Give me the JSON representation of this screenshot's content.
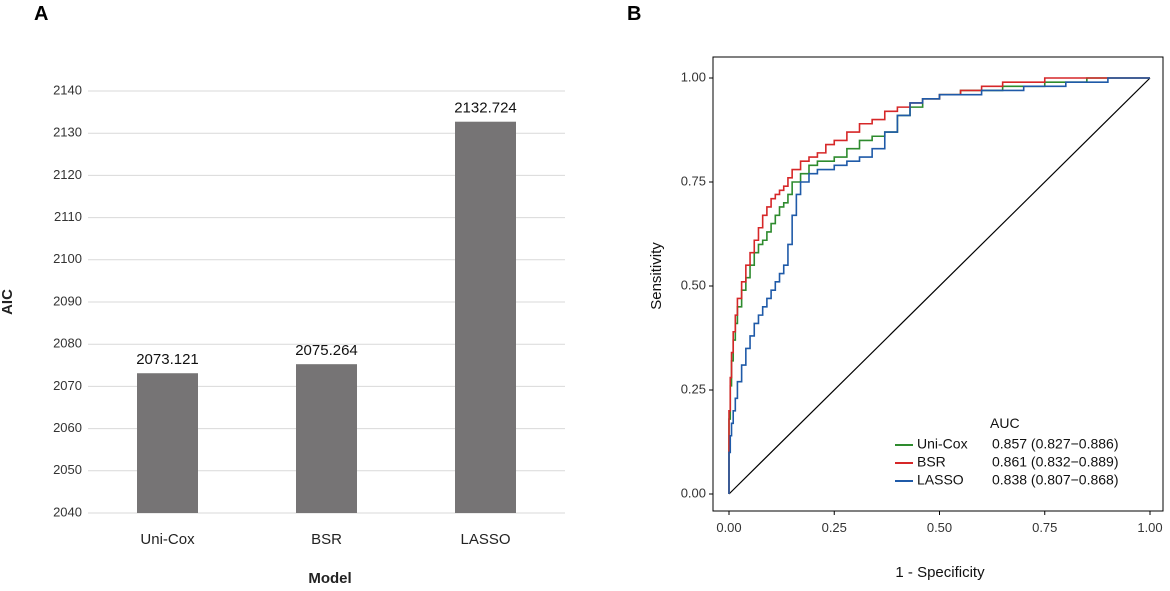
{
  "chart_data": [
    {
      "panel": "A",
      "type": "bar",
      "categories": [
        "Uni-Cox",
        "BSR",
        "LASSO"
      ],
      "values": [
        2073.121,
        2075.264,
        2132.724
      ],
      "value_labels": [
        "2073.121",
        "2075.264",
        "2132.724"
      ],
      "xlabel": "Model",
      "ylabel": "AIC",
      "ylim": [
        2040,
        2140
      ],
      "yticks": [
        "2040",
        "2050",
        "2060",
        "2070",
        "2080",
        "2090",
        "2100",
        "2110",
        "2120",
        "2130",
        "2140"
      ],
      "bar_color": "#767475",
      "grid": true
    },
    {
      "panel": "B",
      "type": "line",
      "xlabel": "1 - Specificity",
      "ylabel": "Sensitivity",
      "xlim": [
        0,
        1
      ],
      "ylim": [
        0,
        1
      ],
      "xticks": [
        "0.00",
        "0.25",
        "0.50",
        "0.75",
        "1.00"
      ],
      "yticks": [
        "0.00",
        "0.25",
        "0.50",
        "0.75",
        "1.00"
      ],
      "legend_title": "AUC",
      "legend_position": "bottom-right",
      "series": [
        {
          "name": "Uni-Cox",
          "auc_text": "0.857 (0.827−0.886)",
          "color": "#2e8b2e",
          "x": [
            0,
            0.003,
            0.006,
            0.01,
            0.015,
            0.02,
            0.03,
            0.04,
            0.05,
            0.06,
            0.07,
            0.08,
            0.09,
            0.1,
            0.11,
            0.12,
            0.13,
            0.14,
            0.15,
            0.17,
            0.19,
            0.21,
            0.23,
            0.25,
            0.28,
            0.31,
            0.34,
            0.37,
            0.4,
            0.43,
            0.46,
            0.5,
            0.55,
            0.6,
            0.65,
            0.7,
            0.75,
            0.8,
            0.85,
            0.9,
            0.95,
            1.0
          ],
          "y": [
            0,
            0.18,
            0.26,
            0.32,
            0.37,
            0.41,
            0.45,
            0.49,
            0.52,
            0.55,
            0.58,
            0.6,
            0.61,
            0.63,
            0.65,
            0.67,
            0.69,
            0.7,
            0.72,
            0.75,
            0.77,
            0.79,
            0.8,
            0.8,
            0.81,
            0.83,
            0.85,
            0.86,
            0.87,
            0.91,
            0.93,
            0.95,
            0.96,
            0.97,
            0.97,
            0.98,
            0.98,
            0.99,
            0.99,
            1.0,
            1.0,
            1.0
          ]
        },
        {
          "name": "BSR",
          "auc_text": "0.861 (0.832−0.889)",
          "color": "#d62728",
          "x": [
            0,
            0.003,
            0.006,
            0.01,
            0.015,
            0.02,
            0.03,
            0.04,
            0.05,
            0.06,
            0.07,
            0.08,
            0.09,
            0.1,
            0.11,
            0.12,
            0.13,
            0.14,
            0.15,
            0.17,
            0.19,
            0.21,
            0.23,
            0.25,
            0.28,
            0.31,
            0.34,
            0.37,
            0.4,
            0.43,
            0.46,
            0.5,
            0.55,
            0.6,
            0.65,
            0.7,
            0.75,
            0.8,
            0.85,
            0.9,
            0.95,
            1.0
          ],
          "y": [
            0,
            0.2,
            0.28,
            0.34,
            0.39,
            0.43,
            0.47,
            0.51,
            0.55,
            0.58,
            0.61,
            0.64,
            0.67,
            0.69,
            0.71,
            0.72,
            0.73,
            0.74,
            0.76,
            0.78,
            0.8,
            0.81,
            0.82,
            0.84,
            0.85,
            0.87,
            0.89,
            0.9,
            0.92,
            0.93,
            0.94,
            0.95,
            0.96,
            0.97,
            0.98,
            0.99,
            0.99,
            1.0,
            1.0,
            1.0,
            1.0,
            1.0
          ]
        },
        {
          "name": "LASSO",
          "auc_text": "0.838 (0.807−0.868)",
          "color": "#1f5aa8",
          "x": [
            0,
            0.003,
            0.006,
            0.01,
            0.015,
            0.02,
            0.03,
            0.04,
            0.05,
            0.06,
            0.07,
            0.08,
            0.09,
            0.1,
            0.11,
            0.12,
            0.13,
            0.14,
            0.15,
            0.16,
            0.17,
            0.19,
            0.21,
            0.23,
            0.25,
            0.28,
            0.31,
            0.34,
            0.37,
            0.4,
            0.43,
            0.46,
            0.5,
            0.55,
            0.6,
            0.65,
            0.7,
            0.75,
            0.8,
            0.85,
            0.9,
            0.95,
            1.0
          ],
          "y": [
            0,
            0.1,
            0.14,
            0.17,
            0.2,
            0.23,
            0.27,
            0.31,
            0.35,
            0.38,
            0.41,
            0.43,
            0.45,
            0.47,
            0.49,
            0.51,
            0.53,
            0.55,
            0.6,
            0.67,
            0.72,
            0.75,
            0.77,
            0.78,
            0.78,
            0.79,
            0.8,
            0.81,
            0.83,
            0.87,
            0.91,
            0.94,
            0.95,
            0.96,
            0.96,
            0.97,
            0.97,
            0.98,
            0.98,
            0.99,
            0.99,
            1.0,
            1.0
          ]
        }
      ],
      "reference_line": [
        [
          0,
          0
        ],
        [
          1,
          1
        ]
      ]
    }
  ]
}
